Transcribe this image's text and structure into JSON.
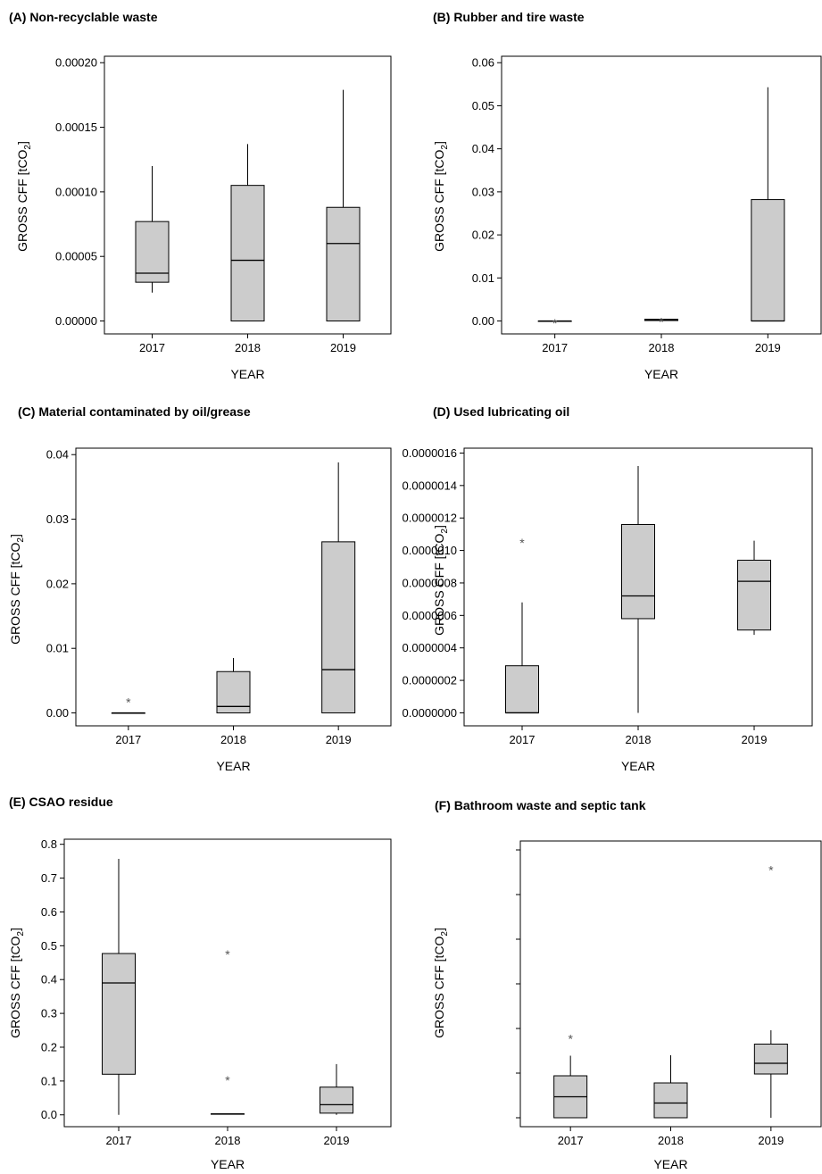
{
  "chart_data": [
    {
      "type": "box",
      "title": "(A) Non-recyclable waste",
      "xlabel": "YEAR",
      "ylabel": "GROSS CFF [tCO",
      "ylabel_sub": "2",
      "ylabel_end": "]",
      "ylim": [
        -1e-05,
        0.000205
      ],
      "yticks": [
        0,
        5e-05,
        0.0001,
        0.00015,
        0.0002
      ],
      "ytick_labels": [
        "0.00000",
        "0.00005",
        "0.00010",
        "0.00015",
        "0.00020"
      ],
      "categories": [
        "2017",
        "2018",
        "2019"
      ],
      "boxes": [
        {
          "min": 2.2e-05,
          "q1": 3e-05,
          "median": 3.7e-05,
          "q3": 7.7e-05,
          "max": 0.00012,
          "outliers": []
        },
        {
          "min": 0.0,
          "q1": 0.0,
          "median": 4.7e-05,
          "q3": 0.000105,
          "max": 0.000137,
          "outliers": []
        },
        {
          "min": 0.0,
          "q1": 0.0,
          "median": 6e-05,
          "q3": 8.8e-05,
          "max": 0.000179,
          "outliers": []
        }
      ]
    },
    {
      "type": "box",
      "title": "(B) Rubber and tire waste",
      "xlabel": "YEAR",
      "ylabel": "GROSS CFF [tCO",
      "ylabel_sub": "2",
      "ylabel_end": "]",
      "ylim": [
        -0.003,
        0.0615
      ],
      "yticks": [
        0,
        0.01,
        0.02,
        0.03,
        0.04,
        0.05,
        0.06
      ],
      "ytick_labels": [
        "0.00",
        "0.01",
        "0.02",
        "0.03",
        "0.04",
        "0.05",
        "0.06"
      ],
      "categories": [
        "2017",
        "2018",
        "2019"
      ],
      "boxes": [
        {
          "min": 0.0,
          "q1": 0.0,
          "median": 0.0,
          "q3": 0.0,
          "max": 0.0,
          "outliers": [
            0.0003
          ]
        },
        {
          "min": 0.0,
          "q1": 0.0001,
          "median": 0.0003,
          "q3": 0.0004,
          "max": 0.0004,
          "outliers": [
            0.0006
          ]
        },
        {
          "min": 0.0,
          "q1": 0.0,
          "median": 0.0,
          "q3": 0.0282,
          "max": 0.0543,
          "outliers": []
        }
      ]
    },
    {
      "type": "box",
      "title": "(C) Material contaminated by oil/grease",
      "xlabel": "YEAR",
      "ylabel": "GROSS CFF [tCO",
      "ylabel_sub": "2",
      "ylabel_end": "]",
      "ylim": [
        -0.002,
        0.041
      ],
      "yticks": [
        0,
        0.01,
        0.02,
        0.03,
        0.04
      ],
      "ytick_labels": [
        "0.00",
        "0.01",
        "0.02",
        "0.03",
        "0.04"
      ],
      "categories": [
        "2017",
        "2018",
        "2019"
      ],
      "boxes": [
        {
          "min": 0.0,
          "q1": 0.0,
          "median": 0.0,
          "q3": 0.0,
          "max": 0.0,
          "outliers": [
            0.0022
          ]
        },
        {
          "min": 0.0,
          "q1": 0.0,
          "median": 0.001,
          "q3": 0.0064,
          "max": 0.0085,
          "outliers": []
        },
        {
          "min": 0.0,
          "q1": 0.0,
          "median": 0.0067,
          "q3": 0.0265,
          "max": 0.0388,
          "outliers": []
        }
      ]
    },
    {
      "type": "box",
      "title": "(D) Used lubricating oil",
      "xlabel": "YEAR",
      "ylabel": "GROSS CFF [tCO",
      "ylabel_sub": "2",
      "ylabel_end": "]",
      "ylim": [
        -8e-08,
        1.63e-06
      ],
      "yticks": [
        0,
        2e-07,
        4e-07,
        6e-07,
        8e-07,
        1e-06,
        1.2e-06,
        1.4e-06,
        1.6e-06
      ],
      "ytick_labels": [
        "0.0000000",
        "0.0000002",
        "0.0000004",
        "0.0000006",
        "0.0000008",
        "0.0000010",
        "0.0000012",
        "0.0000014",
        "0.0000016"
      ],
      "categories": [
        "2017",
        "2018",
        "2019"
      ],
      "boxes": [
        {
          "min": 0.0,
          "q1": 0.0,
          "median": 0.0,
          "q3": 2.9e-07,
          "max": 6.8e-07,
          "outliers": [
            1.07e-06
          ]
        },
        {
          "min": 0.0,
          "q1": 5.8e-07,
          "median": 7.2e-07,
          "q3": 1.16e-06,
          "max": 1.52e-06,
          "outliers": []
        },
        {
          "min": 4.8e-07,
          "q1": 5.1e-07,
          "median": 8.1e-07,
          "q3": 9.4e-07,
          "max": 1.06e-06,
          "outliers": []
        }
      ]
    },
    {
      "type": "box",
      "title": "(E) CSAO residue",
      "xlabel": "YEAR",
      "ylabel": "GROSS CFF [tCO",
      "ylabel_sub": "2",
      "ylabel_end": "]",
      "ylim": [
        -0.035,
        0.815
      ],
      "yticks": [
        0,
        0.1,
        0.2,
        0.3,
        0.4,
        0.5,
        0.6,
        0.7,
        0.8
      ],
      "ytick_labels": [
        "0.0",
        "0.1",
        "0.2",
        "0.3",
        "0.4",
        "0.5",
        "0.6",
        "0.7",
        "0.8"
      ],
      "categories": [
        "2017",
        "2018",
        "2019"
      ],
      "boxes": [
        {
          "min": 0.0,
          "q1": 0.12,
          "median": 0.39,
          "q3": 0.477,
          "max": 0.757,
          "outliers": []
        },
        {
          "min": 0.003,
          "q1": 0.003,
          "median": 0.003,
          "q3": 0.003,
          "max": 0.003,
          "outliers": [
            0.113,
            0.485
          ]
        },
        {
          "min": 0.0,
          "q1": 0.005,
          "median": 0.03,
          "q3": 0.082,
          "max": 0.15,
          "outliers": []
        }
      ]
    },
    {
      "type": "box",
      "title": "(F) Bathroom waste and septic tank",
      "xlabel": "YEAR",
      "ylabel": "GROSS CFF [tCO",
      "ylabel_sub": "2",
      "ylabel_end": "]",
      "ylim": [
        -0.2,
        6.2
      ],
      "yticks": [
        0,
        1,
        2,
        3,
        4,
        5,
        6
      ],
      "ytick_labels": [],
      "categories": [
        "2017",
        "2018",
        "2019"
      ],
      "boxes": [
        {
          "min": 0.0,
          "q1": 0.0,
          "median": 0.47,
          "q3": 0.94,
          "max": 1.39,
          "outliers": [
            1.85
          ]
        },
        {
          "min": 0.0,
          "q1": 0.0,
          "median": 0.33,
          "q3": 0.78,
          "max": 1.4,
          "outliers": []
        },
        {
          "min": 0.0,
          "q1": 0.98,
          "median": 1.22,
          "q3": 1.65,
          "max": 1.96,
          "outliers": [
            5.63
          ]
        }
      ]
    }
  ]
}
